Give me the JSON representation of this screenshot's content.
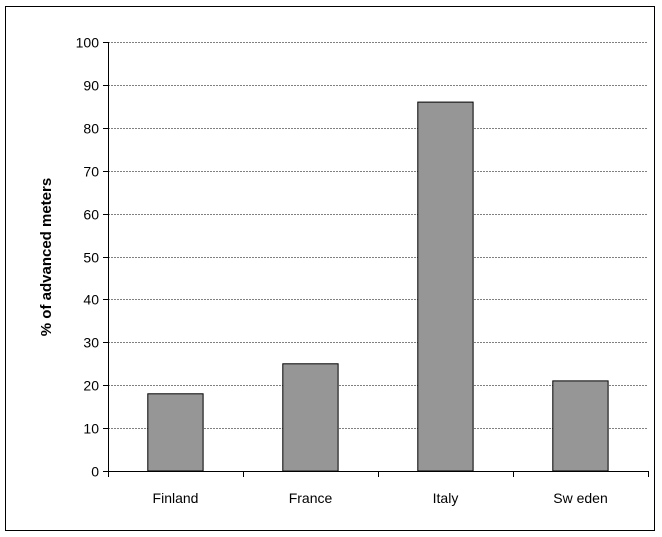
{
  "chart_data": {
    "type": "bar",
    "title": "",
    "xlabel": "",
    "ylabel": "% of advanced meters",
    "categories": [
      "Finland",
      "France",
      "Italy",
      "Sw eden"
    ],
    "values": [
      18,
      25,
      86,
      21
    ],
    "ylim": [
      0,
      100
    ],
    "yticks": [
      0,
      10,
      20,
      30,
      40,
      50,
      60,
      70,
      80,
      90,
      100
    ],
    "grid": "horizontal dashed",
    "legend": "none",
    "bar_color": "#969696",
    "bar_edge_color": "#000000"
  }
}
